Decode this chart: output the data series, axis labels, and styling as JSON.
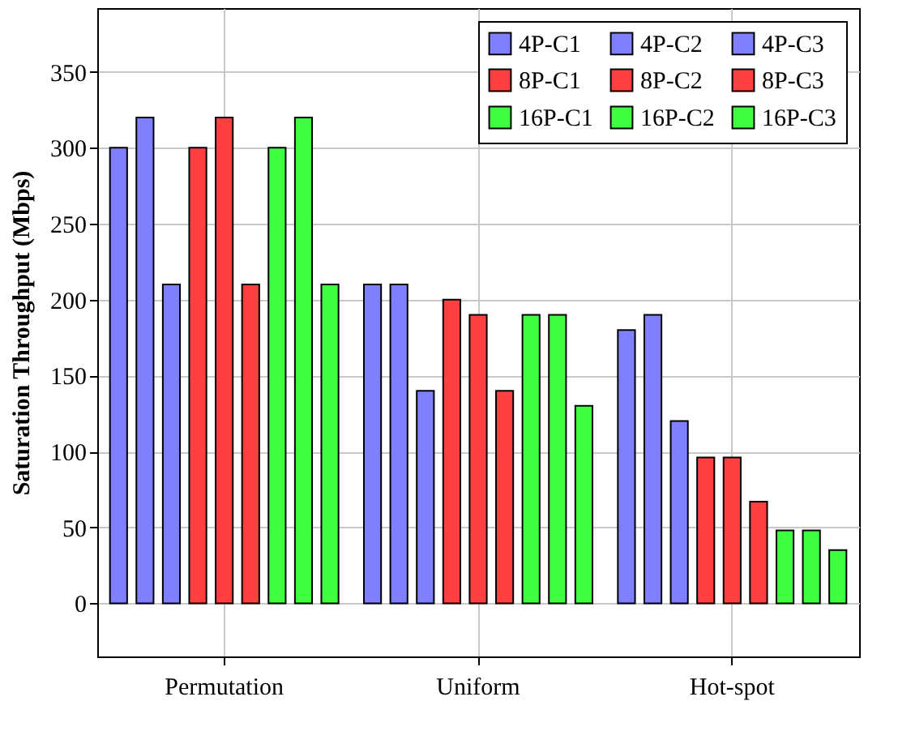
{
  "chart_data": {
    "type": "bar",
    "ylabel": "Saturation Throughput (Mbps)",
    "categories": [
      "Permutation",
      "Uniform",
      "Hot-spot"
    ],
    "series": [
      {
        "name": "4P-C1",
        "color": "#8080ff",
        "values": [
          300,
          210,
          180
        ]
      },
      {
        "name": "4P-C2",
        "color": "#8080ff",
        "values": [
          320,
          210,
          190
        ]
      },
      {
        "name": "4P-C3",
        "color": "#8080ff",
        "values": [
          210,
          140,
          120
        ]
      },
      {
        "name": "8P-C1",
        "color": "#ff4040",
        "values": [
          300,
          200,
          96
        ]
      },
      {
        "name": "8P-C2",
        "color": "#ff4040",
        "values": [
          320,
          190,
          96
        ]
      },
      {
        "name": "8P-C3",
        "color": "#ff4040",
        "values": [
          210,
          140,
          67
        ]
      },
      {
        "name": "16P-C1",
        "color": "#40ff40",
        "values": [
          300,
          190,
          48
        ]
      },
      {
        "name": "16P-C2",
        "color": "#40ff40",
        "values": [
          320,
          190,
          48
        ]
      },
      {
        "name": "16P-C3",
        "color": "#40ff40",
        "values": [
          210,
          130,
          35
        ]
      }
    ],
    "ylim": [
      -35,
      392
    ],
    "yticks": [
      0,
      50,
      100,
      150,
      200,
      250,
      300,
      350
    ],
    "grid": true,
    "legend": "top right"
  }
}
